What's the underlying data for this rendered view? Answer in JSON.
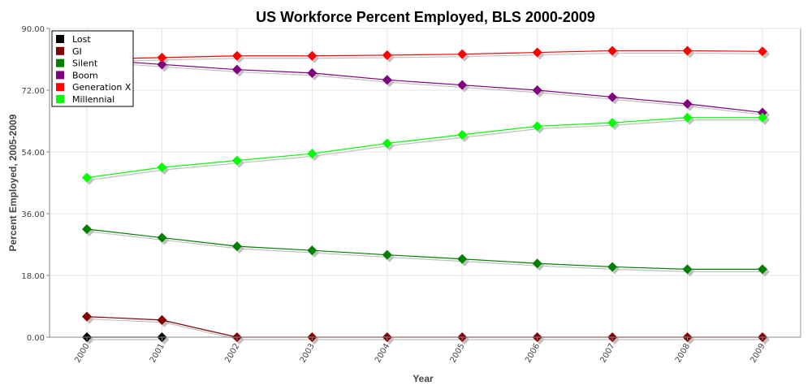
{
  "chart_data": {
    "type": "line",
    "title": "US Workforce Percent Employed, BLS 2000-2009",
    "xlabel": "Year",
    "ylabel": "Percent Employed, 2005-2009",
    "ylim": [
      0,
      90
    ],
    "yticks": [
      "0.00",
      "18.00",
      "36.00",
      "54.00",
      "72.00",
      "90.00"
    ],
    "grid": true,
    "legend_position": "top-left",
    "categories": [
      "2000",
      "2001",
      "2002",
      "2003",
      "2004",
      "2005",
      "2006",
      "2007",
      "2008",
      "2009"
    ],
    "series": [
      {
        "name": "Lost",
        "color": "#000000",
        "values": [
          0,
          0,
          null,
          null,
          null,
          null,
          null,
          null,
          null,
          null
        ]
      },
      {
        "name": "GI",
        "color": "#800000",
        "values": [
          6,
          5,
          0,
          0,
          0,
          0,
          0,
          0,
          0,
          0
        ]
      },
      {
        "name": "Silent",
        "color": "#008000",
        "values": [
          31.5,
          29,
          26.5,
          25.3,
          24,
          22.8,
          21.5,
          20.5,
          19.8,
          19.8
        ]
      },
      {
        "name": "Boom",
        "color": "#800080",
        "values": [
          81,
          79.5,
          78,
          77,
          75,
          73.5,
          72,
          70,
          68,
          65.5
        ]
      },
      {
        "name": "Generation X",
        "color": "#ff0000",
        "values": [
          81,
          81.5,
          82,
          82,
          82.2,
          82.5,
          83,
          83.5,
          83.5,
          83.3
        ]
      },
      {
        "name": "Millennial",
        "color": "#00ff00",
        "values": [
          46.5,
          49.5,
          51.5,
          53.5,
          56.5,
          59,
          61.5,
          62.5,
          64,
          64
        ]
      }
    ]
  }
}
